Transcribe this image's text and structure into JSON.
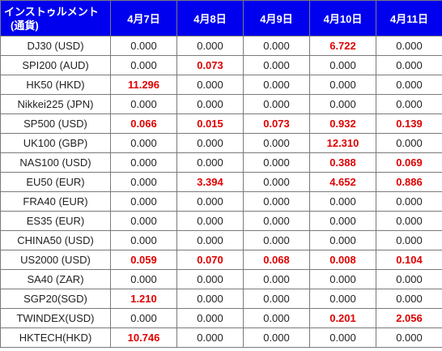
{
  "header": {
    "instrument_line1": "インストゥルメント",
    "instrument_line2": "(通貨)",
    "dates": [
      "4月7日",
      "4月8日",
      "4月9日",
      "4月10日",
      "4月11日"
    ]
  },
  "colors": {
    "header_bg": "#0000ee",
    "highlight": "#e00000"
  },
  "rows": [
    {
      "name": "DJ30 (USD)",
      "values": [
        "0.000",
        "0.000",
        "0.000",
        "6.722",
        "0.000"
      ],
      "highlight": [
        false,
        false,
        false,
        true,
        false
      ]
    },
    {
      "name": "SPI200 (AUD)",
      "values": [
        "0.000",
        "0.073",
        "0.000",
        "0.000",
        "0.000"
      ],
      "highlight": [
        false,
        true,
        false,
        false,
        false
      ]
    },
    {
      "name": "HK50 (HKD)",
      "values": [
        "11.296",
        "0.000",
        "0.000",
        "0.000",
        "0.000"
      ],
      "highlight": [
        true,
        false,
        false,
        false,
        false
      ]
    },
    {
      "name": "Nikkei225 (JPN)",
      "values": [
        "0.000",
        "0.000",
        "0.000",
        "0.000",
        "0.000"
      ],
      "highlight": [
        false,
        false,
        false,
        false,
        false
      ]
    },
    {
      "name": "SP500 (USD)",
      "values": [
        "0.066",
        "0.015",
        "0.073",
        "0.932",
        "0.139"
      ],
      "highlight": [
        true,
        true,
        true,
        true,
        true
      ]
    },
    {
      "name": "UK100 (GBP)",
      "values": [
        "0.000",
        "0.000",
        "0.000",
        "12.310",
        "0.000"
      ],
      "highlight": [
        false,
        false,
        false,
        true,
        false
      ]
    },
    {
      "name": "NAS100 (USD)",
      "values": [
        "0.000",
        "0.000",
        "0.000",
        "0.388",
        "0.069"
      ],
      "highlight": [
        false,
        false,
        false,
        true,
        true
      ]
    },
    {
      "name": "EU50 (EUR)",
      "values": [
        "0.000",
        "3.394",
        "0.000",
        "4.652",
        "0.886"
      ],
      "highlight": [
        false,
        true,
        false,
        true,
        true
      ]
    },
    {
      "name": "FRA40 (EUR)",
      "values": [
        "0.000",
        "0.000",
        "0.000",
        "0.000",
        "0.000"
      ],
      "highlight": [
        false,
        false,
        false,
        false,
        false
      ]
    },
    {
      "name": "ES35 (EUR)",
      "values": [
        "0.000",
        "0.000",
        "0.000",
        "0.000",
        "0.000"
      ],
      "highlight": [
        false,
        false,
        false,
        false,
        false
      ]
    },
    {
      "name": "CHINA50 (USD)",
      "values": [
        "0.000",
        "0.000",
        "0.000",
        "0.000",
        "0.000"
      ],
      "highlight": [
        false,
        false,
        false,
        false,
        false
      ]
    },
    {
      "name": "US2000 (USD)",
      "values": [
        "0.059",
        "0.070",
        "0.068",
        "0.008",
        "0.104"
      ],
      "highlight": [
        true,
        true,
        true,
        true,
        true
      ]
    },
    {
      "name": "SA40 (ZAR)",
      "values": [
        "0.000",
        "0.000",
        "0.000",
        "0.000",
        "0.000"
      ],
      "highlight": [
        false,
        false,
        false,
        false,
        false
      ]
    },
    {
      "name": "SGP20(SGD)",
      "values": [
        "1.210",
        "0.000",
        "0.000",
        "0.000",
        "0.000"
      ],
      "highlight": [
        true,
        false,
        false,
        false,
        false
      ]
    },
    {
      "name": "TWINDEX(USD)",
      "values": [
        "0.000",
        "0.000",
        "0.000",
        "0.201",
        "2.056"
      ],
      "highlight": [
        false,
        false,
        false,
        true,
        true
      ]
    },
    {
      "name": "HKTECH(HKD)",
      "values": [
        "10.746",
        "0.000",
        "0.000",
        "0.000",
        "0.000"
      ],
      "highlight": [
        true,
        false,
        false,
        false,
        false
      ]
    }
  ]
}
